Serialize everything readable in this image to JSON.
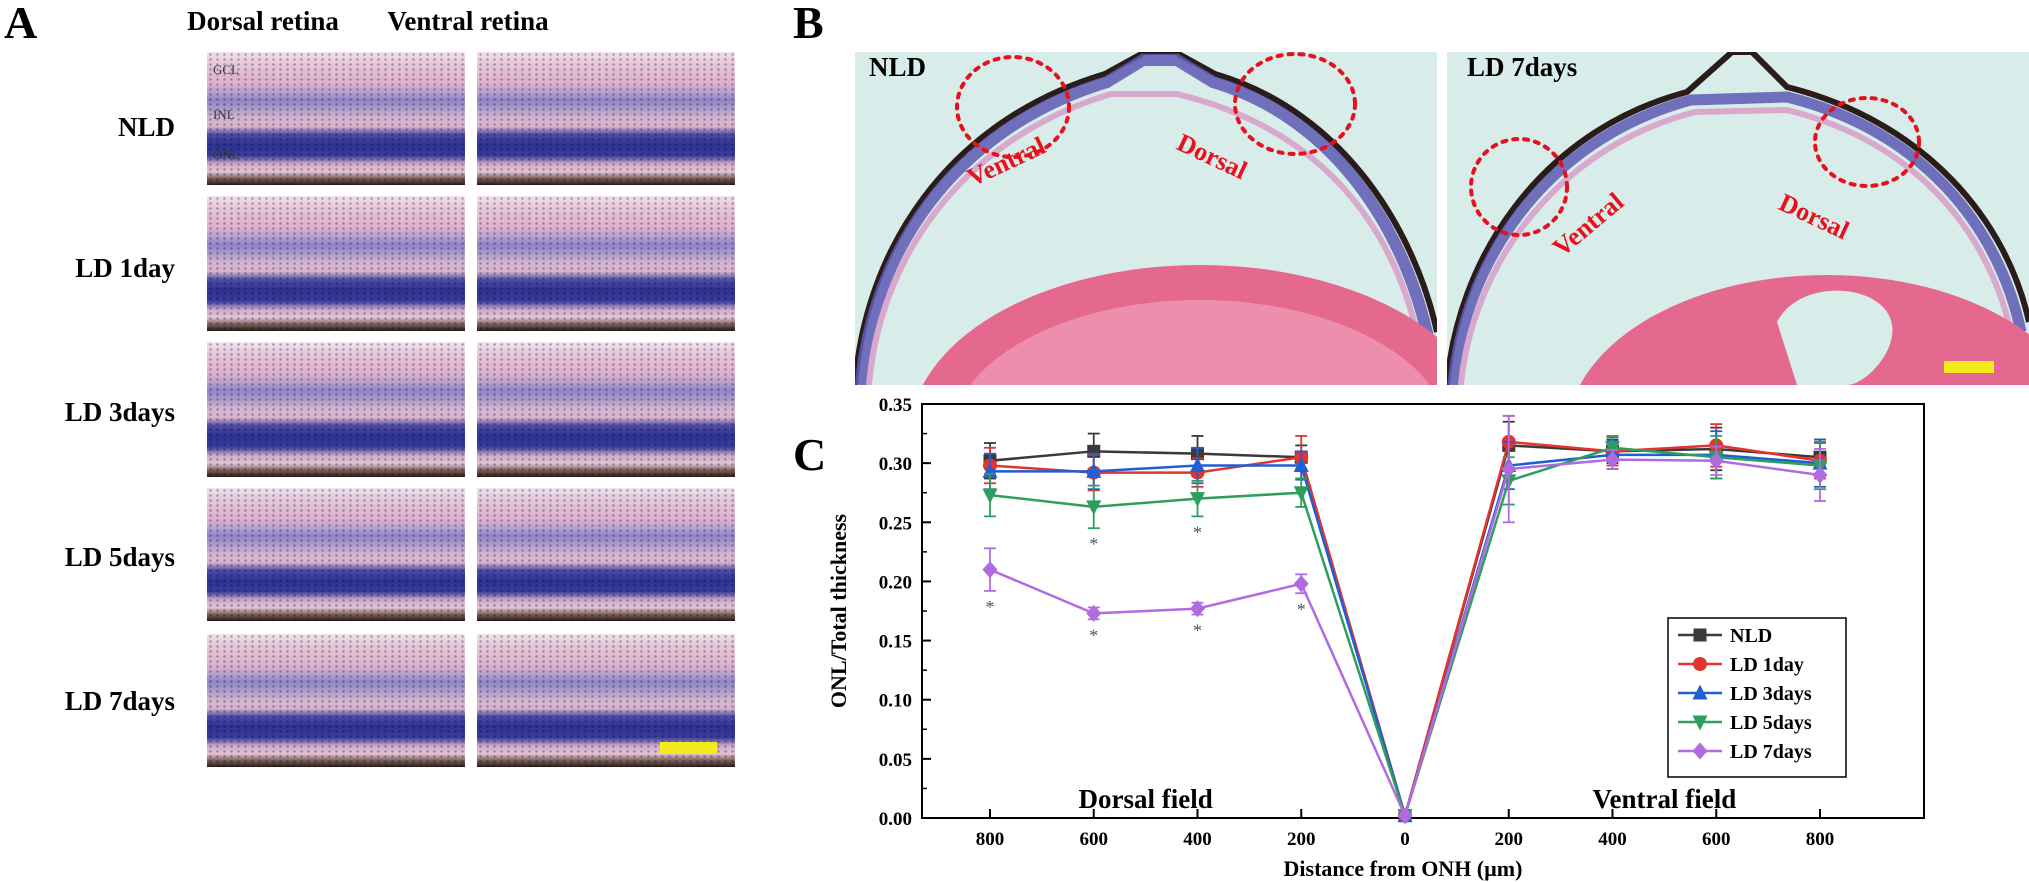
{
  "panels": {
    "a": {
      "letter": "A",
      "columns": [
        "Dorsal retina",
        "Ventral retina"
      ],
      "rows": [
        "NLD",
        "LD 1day",
        "LD 3days",
        "LD 5days",
        "LD 7days"
      ],
      "layer_labels": [
        "GCL",
        "INL",
        "ONL"
      ],
      "scale_bar_color": "#f5ea1c"
    },
    "b": {
      "letter": "B",
      "images": [
        {
          "label": "NLD",
          "regions": [
            "Ventral",
            "Dorsal"
          ]
        },
        {
          "label": "LD 7days",
          "regions": [
            "Ventral",
            "Dorsal"
          ]
        }
      ],
      "highlight_color": "#e8101c"
    },
    "c": {
      "letter": "C",
      "field_labels": [
        "Dorsal field",
        "Ventral field"
      ]
    }
  },
  "chart_data": {
    "type": "line",
    "xlabel": "Distance from ONH (µm)",
    "ylabel": "ONL/Total thickness",
    "x_tick_labels": [
      "800",
      "600",
      "400",
      "200",
      "0",
      "200",
      "400",
      "600",
      "800"
    ],
    "y_ticks": [
      "0.00",
      "0.05",
      "0.10",
      "0.15",
      "0.20",
      "0.25",
      "0.30",
      "0.35"
    ],
    "ylim": [
      0,
      0.35
    ],
    "legend_position": "bottom-right",
    "grid": false,
    "significance_marker": "*",
    "series": [
      {
        "name": "NLD",
        "color": "#3a3a3a",
        "marker": "square",
        "values": [
          0.302,
          0.31,
          0.308,
          0.305,
          0.002,
          0.315,
          0.31,
          0.312,
          0.305
        ],
        "errors": [
          0.015,
          0.015,
          0.015,
          0.01,
          0.0,
          0.02,
          0.01,
          0.018,
          0.015
        ],
        "significant": [
          false,
          false,
          false,
          false,
          false,
          false,
          false,
          false,
          false
        ]
      },
      {
        "name": "LD 1day",
        "color": "#e3342f",
        "marker": "circle",
        "values": [
          0.298,
          0.292,
          0.292,
          0.305,
          0.002,
          0.318,
          0.31,
          0.315,
          0.302
        ],
        "errors": [
          0.015,
          0.015,
          0.012,
          0.018,
          0.0,
          0.022,
          0.012,
          0.018,
          0.015
        ],
        "significant": [
          false,
          false,
          false,
          false,
          false,
          false,
          false,
          false,
          false
        ]
      },
      {
        "name": "LD 3days",
        "color": "#1f5fd6",
        "marker": "triangle-up",
        "values": [
          0.293,
          0.293,
          0.298,
          0.298,
          0.002,
          0.298,
          0.307,
          0.307,
          0.3
        ],
        "errors": [
          0.015,
          0.015,
          0.015,
          0.012,
          0.0,
          0.02,
          0.012,
          0.02,
          0.02
        ],
        "significant": [
          false,
          false,
          false,
          false,
          false,
          false,
          false,
          false,
          false
        ]
      },
      {
        "name": "LD 5days",
        "color": "#2e9e5e",
        "marker": "triangle-down",
        "values": [
          0.273,
          0.263,
          0.27,
          0.275,
          0.002,
          0.285,
          0.313,
          0.305,
          0.298
        ],
        "errors": [
          0.018,
          0.018,
          0.015,
          0.012,
          0.0,
          0.02,
          0.01,
          0.018,
          0.02
        ],
        "significant": [
          false,
          true,
          true,
          false,
          false,
          false,
          false,
          false,
          false
        ]
      },
      {
        "name": "LD 7days",
        "color": "#b06be0",
        "marker": "diamond",
        "values": [
          0.21,
          0.173,
          0.177,
          0.198,
          0.002,
          0.295,
          0.303,
          0.302,
          0.29
        ],
        "errors": [
          0.018,
          0.005,
          0.005,
          0.008,
          0.0,
          0.045,
          0.008,
          0.012,
          0.022
        ],
        "significant": [
          true,
          true,
          true,
          true,
          false,
          false,
          false,
          false,
          false
        ]
      }
    ]
  }
}
